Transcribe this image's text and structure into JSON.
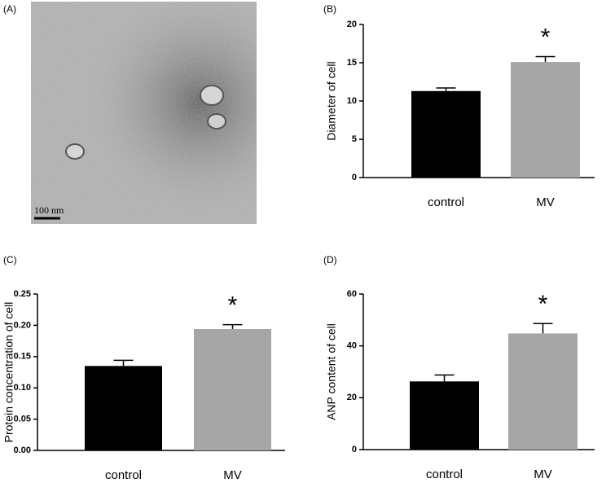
{
  "image_panel": {
    "label": "(A)",
    "scale_bar": "100 nm"
  },
  "chart_data": [
    {
      "type": "bar",
      "panel_label": "(B)",
      "y_label": "Diameter of cell",
      "categories": [
        "control",
        "MV"
      ],
      "values": [
        11.3,
        15.1
      ],
      "errors": [
        0.4,
        0.7
      ],
      "colors": [
        "#000000",
        "#a6a6a6"
      ],
      "annotation": "*",
      "ylim": [
        0,
        20
      ],
      "yticks": [
        0,
        5,
        10,
        15,
        20
      ]
    },
    {
      "type": "bar",
      "panel_label": "(C)",
      "y_label": "Protein concentration of cell",
      "categories": [
        "control",
        "MV"
      ],
      "values": [
        0.135,
        0.194
      ],
      "errors": [
        0.009,
        0.007
      ],
      "colors": [
        "#000000",
        "#a6a6a6"
      ],
      "annotation": "*",
      "ylim": [
        0,
        0.25
      ],
      "yticks": [
        {
          "value": 0,
          "label": "0.00"
        },
        0.05,
        {
          "value": 0.1,
          "label": "0.10"
        },
        0.15,
        {
          "value": 0.2,
          "label": "0.20"
        },
        0.25
      ]
    },
    {
      "type": "bar",
      "panel_label": "(D)",
      "y_label": "ANP content of cell",
      "categories": [
        "control",
        "MV"
      ],
      "values": [
        26.3,
        44.8
      ],
      "errors": [
        2.5,
        3.8
      ],
      "colors": [
        "#000000",
        "#a6a6a6"
      ],
      "annotation": "*",
      "ylim": [
        0,
        60
      ],
      "yticks": [
        0,
        20,
        40,
        60
      ]
    }
  ]
}
